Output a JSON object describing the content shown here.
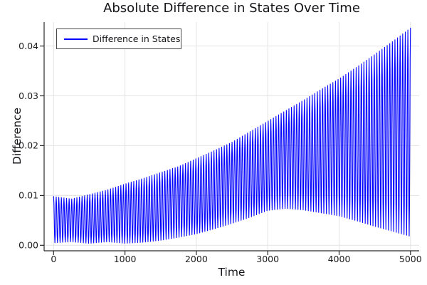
{
  "chart_data": {
    "type": "line",
    "title": "Absolute Difference in States Over Time",
    "xlabel": "Time",
    "ylabel": "Difference",
    "legend": {
      "position": "top-left",
      "entries": [
        {
          "label": "Difference in States",
          "color": "#0000ff"
        }
      ]
    },
    "line_color": "#0000ff",
    "grid": true,
    "xlim": [
      -133,
      5122
    ],
    "ylim": [
      -0.0011,
      0.0448
    ],
    "xticks": {
      "values": [
        0,
        1000,
        2000,
        3000,
        4000,
        5000
      ],
      "labels": [
        "0",
        "1000",
        "2000",
        "3000",
        "4000",
        "5000"
      ]
    },
    "yticks": {
      "values": [
        0.0,
        0.01,
        0.02,
        0.03,
        0.04
      ],
      "labels": [
        "0.00",
        "0.01",
        "0.02",
        "0.03",
        "0.04"
      ]
    },
    "colors": {
      "grid": "#e3e3e3",
      "spine": "#2b2b2b",
      "text": "#1c1c1c"
    },
    "series": [
      {
        "name": "Difference in States",
        "description": "Rapid oscillation of absolute state difference; beats between a lower and an exponentially growing upper envelope",
        "oscillation_cycles": 138,
        "t_samples": [
          0,
          250,
          500,
          750,
          1000,
          1250,
          1500,
          1750,
          2000,
          2250,
          2500,
          2750,
          3000,
          3250,
          3500,
          3750,
          4000,
          4250,
          4500,
          4750,
          5000
        ],
        "upper_envelope": [
          0.0098,
          0.0093,
          0.0102,
          0.0111,
          0.0123,
          0.0134,
          0.0146,
          0.0158,
          0.0174,
          0.019,
          0.0207,
          0.0228,
          0.0249,
          0.027,
          0.0291,
          0.0313,
          0.0334,
          0.0358,
          0.0383,
          0.0409,
          0.0436
        ],
        "lower_envelope": [
          0.0005,
          0.0007,
          0.0004,
          0.0007,
          0.0004,
          0.0006,
          0.001,
          0.0016,
          0.0023,
          0.0033,
          0.0044,
          0.0056,
          0.007,
          0.0074,
          0.0071,
          0.0065,
          0.0059,
          0.0049,
          0.0038,
          0.0028,
          0.0018
        ]
      }
    ]
  }
}
